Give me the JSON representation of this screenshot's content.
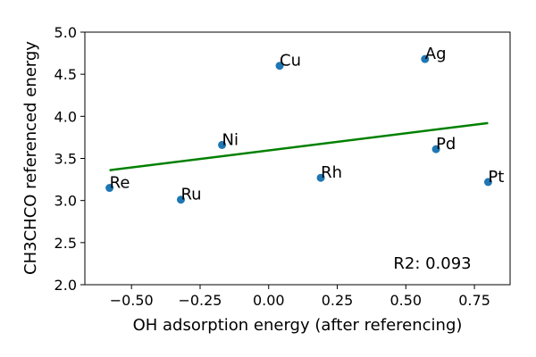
{
  "chart_data": {
    "type": "scatter",
    "title": "",
    "xlabel": "OH adsorption energy (after referencing)",
    "ylabel": "CH3CHCO referenced energy",
    "xlim": [
      -0.67,
      0.88
    ],
    "ylim": [
      2.0,
      5.0
    ],
    "x_ticks": [
      -0.5,
      -0.25,
      0.0,
      0.25,
      0.5,
      0.75
    ],
    "x_tick_labels": [
      "−0.50",
      "−0.25",
      "0.00",
      "0.25",
      "0.50",
      "0.75"
    ],
    "y_ticks": [
      2.0,
      2.5,
      3.0,
      3.5,
      4.0,
      4.5,
      5.0
    ],
    "y_tick_labels": [
      "2.0",
      "2.5",
      "3.0",
      "3.5",
      "4.0",
      "4.5",
      "5.0"
    ],
    "grid": false,
    "points": [
      {
        "label": "Re",
        "x": -0.58,
        "y": 3.15
      },
      {
        "label": "Ru",
        "x": -0.32,
        "y": 3.01
      },
      {
        "label": "Ni",
        "x": -0.17,
        "y": 3.66
      },
      {
        "label": "Cu",
        "x": 0.04,
        "y": 4.6
      },
      {
        "label": "Rh",
        "x": 0.19,
        "y": 3.27
      },
      {
        "label": "Ag",
        "x": 0.57,
        "y": 4.68
      },
      {
        "label": "Pd",
        "x": 0.61,
        "y": 3.61
      },
      {
        "label": "Pt",
        "x": 0.8,
        "y": 3.22
      }
    ],
    "fit_line": {
      "x": [
        -0.58,
        0.8
      ],
      "y": [
        3.36,
        3.92
      ]
    },
    "annotation": "R2: 0.093",
    "colors": {
      "points": "#1f77b4",
      "fit_line": "#008000"
    }
  }
}
